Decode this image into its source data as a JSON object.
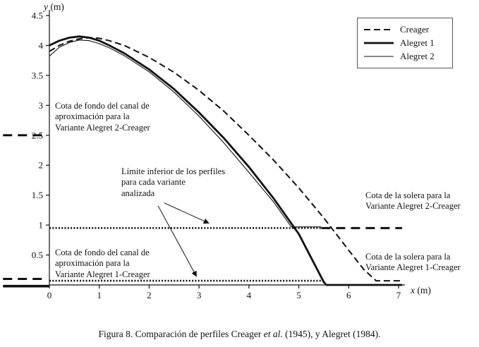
{
  "axes": {
    "x_label_var": "x",
    "x_label_unit": " (m)",
    "y_label_var": "y",
    "y_label_unit": " (m)",
    "x_ticks": [
      0,
      1,
      2,
      3,
      4,
      5,
      6,
      7
    ],
    "y_ticks": [
      0.5,
      1,
      1.5,
      2,
      2.5,
      3,
      3.5,
      4,
      4.5
    ]
  },
  "legend": {
    "items": [
      {
        "label": "Creager",
        "style": "dashed"
      },
      {
        "label": "Alegret 1",
        "style": "thick"
      },
      {
        "label": "Alegret 2",
        "style": "thin"
      }
    ]
  },
  "annotations": {
    "fondo2": "Cota de fondo del canal de\naproximación para la\nVariante Alegret 2-Creager",
    "limite": "Límite inferior de los perfiles\npara cada variante\nanalizada",
    "solera2": "Cota de la solera para la\nVariante Alegret 2-Creager",
    "fondo1": "Cota de fondo del canal de\naproximación para la\nVariante Alegret 1-Creager",
    "solera1": "Cota de la solera para la\nVariante Alegret 1-Creager"
  },
  "caption": {
    "prefix": "Figura 8. Comparación de perfiles Creager ",
    "italic": "et al.",
    "suffix": " (1945), y Alegret (1984)."
  },
  "chart_data": {
    "type": "line",
    "title": "Figura 8. Comparación de perfiles Creager et al. (1945), y Alegret (1984).",
    "xlabel": "x (m)",
    "ylabel": "y (m)",
    "xlim": [
      0,
      7
    ],
    "ylim": [
      0,
      4.5
    ],
    "grid": false,
    "legend_position": "top-right",
    "series": [
      {
        "name": "Creager",
        "style": "dashed",
        "points": [
          [
            0,
            3.9
          ],
          [
            0.2,
            4.0
          ],
          [
            0.4,
            4.07
          ],
          [
            0.6,
            4.11
          ],
          [
            0.8,
            4.13
          ],
          [
            1.0,
            4.12
          ],
          [
            1.2,
            4.08
          ],
          [
            1.5,
            4.0
          ],
          [
            2.0,
            3.8
          ],
          [
            2.5,
            3.55
          ],
          [
            3.0,
            3.25
          ],
          [
            3.5,
            2.9
          ],
          [
            4.0,
            2.5
          ],
          [
            4.5,
            2.08
          ],
          [
            5.0,
            1.62
          ],
          [
            5.5,
            1.12
          ],
          [
            6.0,
            0.58
          ],
          [
            6.3,
            0.26
          ],
          [
            6.55,
            0.07
          ],
          [
            7.05,
            0.07
          ]
        ]
      },
      {
        "name": "Alegret 1",
        "style": "thick",
        "points": [
          [
            0,
            4.0
          ],
          [
            0.2,
            4.08
          ],
          [
            0.4,
            4.13
          ],
          [
            0.6,
            4.15
          ],
          [
            0.8,
            4.13
          ],
          [
            1.0,
            4.08
          ],
          [
            1.2,
            4.0
          ],
          [
            1.5,
            3.87
          ],
          [
            2.0,
            3.6
          ],
          [
            2.5,
            3.27
          ],
          [
            3.0,
            2.88
          ],
          [
            3.5,
            2.45
          ],
          [
            4.0,
            1.97
          ],
          [
            4.5,
            1.44
          ],
          [
            5.0,
            0.85
          ],
          [
            5.5,
            0.05
          ],
          [
            5.55,
            0.0
          ],
          [
            7.07,
            0.0
          ]
        ]
      },
      {
        "name": "Alegret 2",
        "style": "thin",
        "points": [
          [
            0,
            3.82
          ],
          [
            0.2,
            3.97
          ],
          [
            0.4,
            4.05
          ],
          [
            0.6,
            4.09
          ],
          [
            0.8,
            4.08
          ],
          [
            1.0,
            4.03
          ],
          [
            1.2,
            3.96
          ],
          [
            1.5,
            3.83
          ],
          [
            2.0,
            3.56
          ],
          [
            2.5,
            3.22
          ],
          [
            3.0,
            2.82
          ],
          [
            3.5,
            2.37
          ],
          [
            4.0,
            1.88
          ],
          [
            4.5,
            1.38
          ],
          [
            4.85,
            0.97
          ],
          [
            5.45,
            0.97
          ]
        ]
      }
    ],
    "reference_lines": [
      {
        "name": "solera-alegret2-dotted",
        "y": 0.95,
        "x1": 0,
        "x2": 5.45,
        "style": "dotted"
      },
      {
        "name": "solera-alegret2-dashed",
        "y": 0.95,
        "x1": 5.45,
        "x2": 7.07,
        "style": "dashed-thick"
      },
      {
        "name": "fondo-alegret1-dotted",
        "y": 0.07,
        "x1": 0,
        "x2": 5.5,
        "style": "dotted"
      },
      {
        "name": "fondo-alegret2-left-dashed",
        "y": 2.5,
        "x1": -0.93,
        "x2": -0.06,
        "style": "dashed-thick"
      },
      {
        "name": "fondo-alegret1-left-dashed",
        "y": 0.1,
        "x1": -0.93,
        "x2": -0.06,
        "style": "dashed-thick"
      },
      {
        "name": "fondo-alegret1-left-solid",
        "y": -0.02,
        "x1": -0.93,
        "x2": 0,
        "style": "solid-thick"
      }
    ],
    "arrows": [
      {
        "name": "arrow-to-solera2-line",
        "x1": 2.3,
        "y1": 1.37,
        "x2": 3.2,
        "y2": 1.03
      },
      {
        "name": "arrow-to-fondo1-line",
        "x1": 2.18,
        "y1": 1.32,
        "x2": 2.95,
        "y2": 0.14
      }
    ]
  }
}
